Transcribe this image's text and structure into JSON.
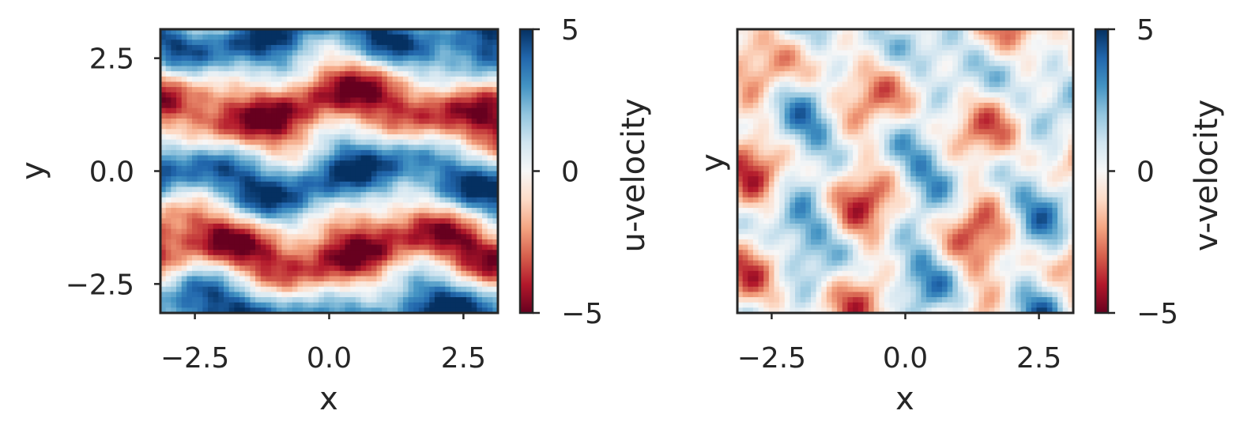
{
  "colors": {
    "axis": "#262626",
    "colormap": "RdBu",
    "negative_dark": "#67001f",
    "negative_mid": "#d6604d",
    "zero": "#f7f7f7",
    "positive_mid": "#4393c3",
    "positive_dark": "#053061"
  },
  "chart_data": [
    {
      "type": "heatmap",
      "field": "u-velocity",
      "xlabel": "x",
      "ylabel": "y",
      "xlim": [
        -3.1416,
        3.1416
      ],
      "ylim": [
        -3.1416,
        3.1416
      ],
      "x_ticks": [
        -2.5,
        0.0,
        2.5
      ],
      "x_tick_labels": [
        "−2.5",
        "0.0",
        "2.5"
      ],
      "y_ticks": [
        -2.5,
        0.0,
        2.5
      ],
      "y_tick_labels": [
        "−2.5",
        "0.0",
        "2.5"
      ],
      "show_y_tick_labels": true,
      "colorbar": {
        "label": "u-velocity",
        "range": [
          -5,
          5
        ],
        "ticks": [
          -5,
          0,
          5
        ],
        "tick_labels": [
          "−5",
          "0",
          "5"
        ]
      },
      "grid": false
    },
    {
      "type": "heatmap",
      "field": "v-velocity",
      "xlabel": "x",
      "ylabel": "y",
      "xlim": [
        -3.1416,
        3.1416
      ],
      "ylim": [
        -3.1416,
        3.1416
      ],
      "x_ticks": [
        -2.5,
        0.0,
        2.5
      ],
      "x_tick_labels": [
        "−2.5",
        "0.0",
        "2.5"
      ],
      "y_ticks": [],
      "y_tick_labels": [],
      "show_y_tick_labels": false,
      "colorbar": {
        "label": "v-velocity",
        "range": [
          -5,
          5
        ],
        "ticks": [
          -5,
          0,
          5
        ],
        "tick_labels": [
          "−5",
          "0",
          "5"
        ]
      },
      "grid": false
    }
  ]
}
